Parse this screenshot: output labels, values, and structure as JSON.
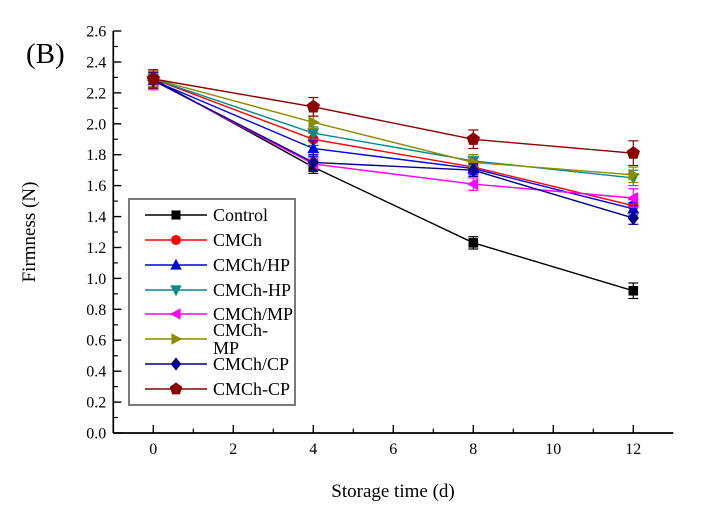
{
  "panel_label": "(B)",
  "chart_data": {
    "type": "line",
    "title": "",
    "xlabel": "Storage time (d)",
    "ylabel": "Firmness (N)",
    "xlim": [
      -1,
      13
    ],
    "ylim": [
      0,
      2.6
    ],
    "xticks": [
      0,
      2,
      4,
      6,
      8,
      10,
      12
    ],
    "x_minor_ticks": [
      1,
      3,
      5,
      7,
      9,
      11
    ],
    "ytick_step": 0.2,
    "y_minor_step": 0.1,
    "grid": false,
    "legend_position": "inside-left",
    "x": [
      0,
      4,
      8,
      12
    ],
    "series": [
      {
        "name": "Control",
        "color": "#000000",
        "marker": "square",
        "values": [
          2.29,
          1.72,
          1.23,
          0.92
        ],
        "errors": [
          0.05,
          0.04,
          0.04,
          0.05
        ]
      },
      {
        "name": "CMCh",
        "color": "#ff0000",
        "marker": "circle",
        "values": [
          2.29,
          1.9,
          1.72,
          1.47
        ],
        "errors": [
          0.05,
          0.04,
          0.04,
          0.04
        ]
      },
      {
        "name": "CMCh/HP",
        "color": "#0000ee",
        "marker": "triangle-up",
        "values": [
          2.28,
          1.84,
          1.71,
          1.45
        ],
        "errors": [
          0.05,
          0.05,
          0.04,
          0.04
        ]
      },
      {
        "name": "CMCh-HP",
        "color": "#008b8b",
        "marker": "triangle-down",
        "values": [
          2.29,
          1.94,
          1.76,
          1.65
        ],
        "errors": [
          0.05,
          0.04,
          0.04,
          0.05
        ]
      },
      {
        "name": "CMCh/MP",
        "color": "#ff00ff",
        "marker": "triangle-left",
        "values": [
          2.28,
          1.74,
          1.61,
          1.52
        ],
        "errors": [
          0.06,
          0.04,
          0.04,
          0.06
        ]
      },
      {
        "name": "CMCh-MP",
        "color": "#8b8b00",
        "marker": "triangle-right",
        "values": [
          2.29,
          2.01,
          1.75,
          1.67
        ],
        "errors": [
          0.05,
          0.04,
          0.05,
          0.05
        ]
      },
      {
        "name": "CMCh/CP",
        "color": "#00008b",
        "marker": "diamond",
        "values": [
          2.28,
          1.75,
          1.7,
          1.39
        ],
        "errors": [
          0.05,
          0.05,
          0.04,
          0.04
        ]
      },
      {
        "name": "CMCh-CP",
        "color": "#8b0000",
        "marker": "pentagon",
        "values": [
          2.29,
          2.11,
          1.9,
          1.81
        ],
        "errors": [
          0.06,
          0.06,
          0.06,
          0.08
        ]
      }
    ]
  }
}
